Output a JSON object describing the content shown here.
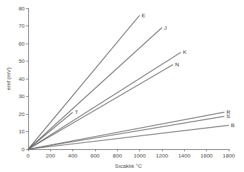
{
  "chart_data": {
    "type": "line",
    "x_label": "Sıcaklık °C",
    "y_label": "emf (mV)",
    "xlim": [
      0,
      1800
    ],
    "xticks": [
      0,
      200,
      400,
      600,
      800,
      1000,
      1200,
      1400,
      1600,
      1800
    ],
    "ylim": [
      0,
      80
    ],
    "yticks": [
      0,
      10,
      20,
      30,
      40,
      50,
      60,
      70,
      80
    ],
    "grid": false,
    "line_style": "solid",
    "series": [
      {
        "name": "E",
        "color": "#6d6e70",
        "x": [
          0,
          1000
        ],
        "values": [
          0,
          76
        ]
      },
      {
        "name": "J",
        "color": "#6d6e70",
        "x": [
          0,
          1200
        ],
        "values": [
          0,
          69
        ]
      },
      {
        "name": "K",
        "color": "#6d6e70",
        "x": [
          0,
          1370
        ],
        "values": [
          0,
          55
        ]
      },
      {
        "name": "N",
        "color": "#6d6e70",
        "x": [
          0,
          1300
        ],
        "values": [
          0,
          48
        ]
      },
      {
        "name": "T",
        "color": "#6d6e70",
        "x": [
          0,
          400
        ],
        "values": [
          0,
          21
        ]
      },
      {
        "name": "R",
        "color": "#6d6e70",
        "x": [
          0,
          1760
        ],
        "values": [
          0,
          21
        ]
      },
      {
        "name": "S",
        "color": "#6d6e70",
        "x": [
          0,
          1760
        ],
        "values": [
          0,
          18.7
        ]
      },
      {
        "name": "B",
        "color": "#6d6e70",
        "x": [
          0,
          1800
        ],
        "values": [
          0,
          13.6
        ]
      }
    ]
  }
}
